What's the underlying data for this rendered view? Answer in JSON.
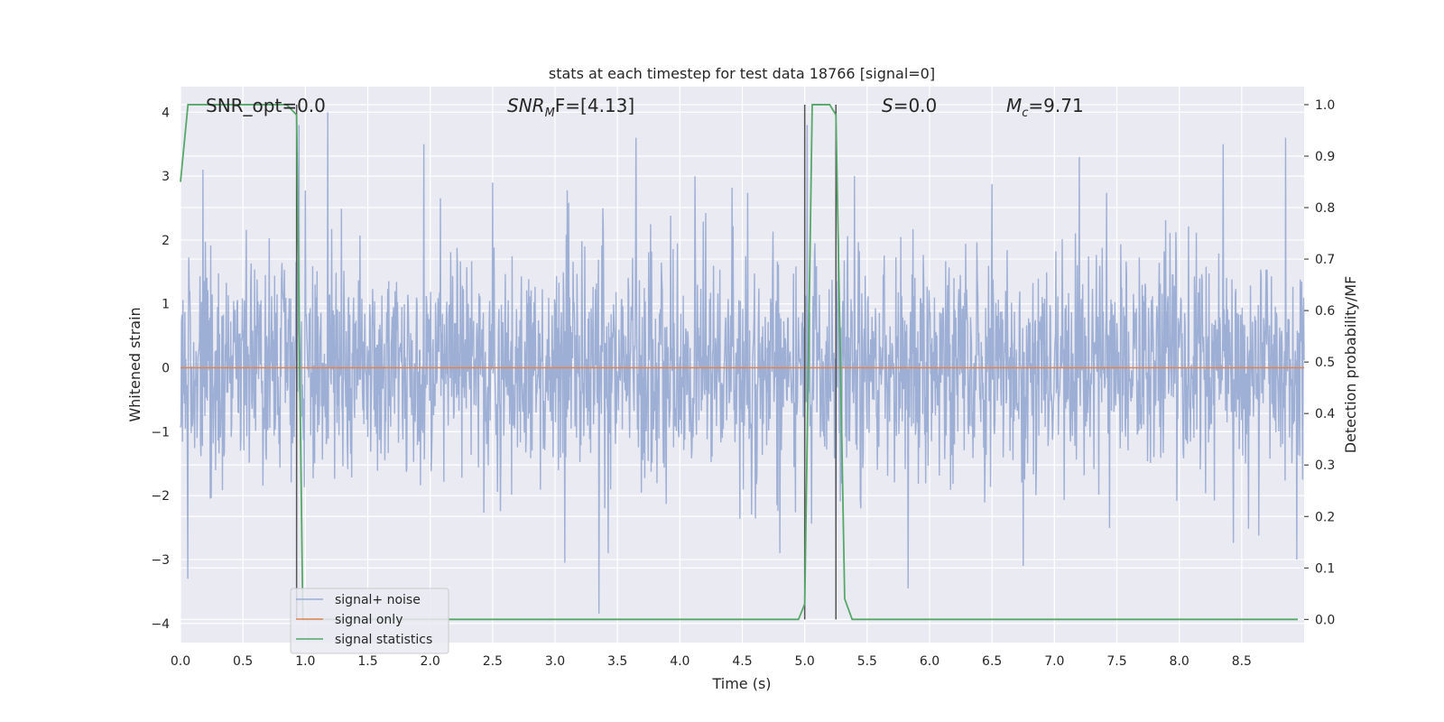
{
  "chart_data": {
    "type": "line",
    "title": "stats at each timestep for test data 18766 [signal=0]",
    "xlabel": "Time (s)",
    "ylabel": "Whitened strain",
    "y2label": "Detection probability/MF",
    "xlim": [
      0,
      9
    ],
    "ylim": [
      -4.3,
      4.4
    ],
    "y2lim": [
      -0.045,
      1.035
    ],
    "xticks": [
      "0.0",
      "0.5",
      "1.0",
      "1.5",
      "2.0",
      "2.5",
      "3.0",
      "3.5",
      "4.0",
      "4.5",
      "5.0",
      "5.5",
      "6.0",
      "6.5",
      "7.0",
      "7.5",
      "8.0",
      "8.5"
    ],
    "yticks": [
      "4",
      "3",
      "2",
      "1",
      "0",
      "−1",
      "−2",
      "−3",
      "−4"
    ],
    "y2ticks": [
      "1.0",
      "0.9",
      "0.8",
      "0.7",
      "0.6",
      "0.5",
      "0.4",
      "0.3",
      "0.2",
      "0.1",
      "0.0"
    ],
    "grid": true,
    "legend_position": "lower-left",
    "annotations": {
      "snr_opt": "SNR_opt=0.0",
      "snr_mf_main": "SNR",
      "snr_mf_sub": "M",
      "snr_mf_rest": "F=[4.13]",
      "s_main": "S",
      "s_rest": "=0.0",
      "mc_main": "M",
      "mc_sub": "c",
      "mc_rest": "=9.71"
    },
    "series": [
      {
        "name": "signal+ noise",
        "color": "#9AACD3",
        "axis": "left",
        "sample_rate": 256,
        "noise_amplitude_sigma": 0.9,
        "peaks": [
          [
            0.06,
            -3.3
          ],
          [
            0.18,
            3.1
          ],
          [
            0.95,
            3.8
          ],
          [
            1.18,
            4.0
          ],
          [
            1.95,
            3.5
          ],
          [
            2.5,
            2.9
          ],
          [
            3.08,
            -3.05
          ],
          [
            3.35,
            -3.85
          ],
          [
            3.65,
            3.6
          ],
          [
            4.12,
            3.0
          ],
          [
            4.8,
            -2.9
          ],
          [
            5.02,
            3.8
          ],
          [
            5.25,
            -3.2
          ],
          [
            5.4,
            3.0
          ],
          [
            5.83,
            -3.45
          ],
          [
            6.75,
            -3.1
          ],
          [
            7.2,
            3.3
          ],
          [
            8.35,
            3.5
          ],
          [
            8.85,
            3.6
          ],
          [
            8.94,
            -3.0
          ]
        ]
      },
      {
        "name": "signal only",
        "color": "#DD8452",
        "axis": "left",
        "x": [
          0,
          9
        ],
        "y": [
          0,
          0
        ]
      },
      {
        "name": "signal statistics",
        "color": "#55A868",
        "axis": "right",
        "x": [
          0.0,
          0.06,
          0.12,
          0.85,
          0.93,
          0.98,
          1.0,
          2.0,
          3.0,
          4.0,
          4.95,
          5.0,
          5.06,
          5.2,
          5.25,
          5.32,
          5.38,
          6.0,
          7.0,
          8.0,
          8.95
        ],
        "y": [
          0.85,
          1.0,
          1.0,
          1.0,
          0.98,
          0.0,
          0.0,
          0.0,
          0.0,
          0.0,
          0.0,
          0.03,
          1.0,
          1.0,
          0.98,
          0.04,
          0.0,
          0.0,
          0.0,
          0.0,
          0.0
        ]
      }
    ],
    "vertical_markers": [
      {
        "x": 0.93,
        "y2_from": 0.0,
        "y2_to": 1.0,
        "color": "#555555"
      },
      {
        "x": 5.0,
        "y2_from": 0.0,
        "y2_to": 1.0,
        "color": "#555555"
      },
      {
        "x": 5.25,
        "y2_from": 0.0,
        "y2_to": 1.0,
        "color": "#555555"
      }
    ]
  }
}
